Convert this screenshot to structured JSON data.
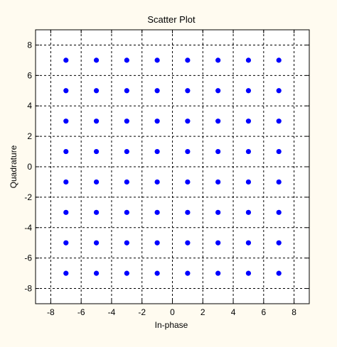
{
  "chart_data": {
    "type": "scatter",
    "title": "Scatter Plot",
    "xlabel": "In-phase",
    "ylabel": "Quadrature",
    "xlim": [
      -9,
      9
    ],
    "ylim": [
      -9,
      9
    ],
    "xticks": [
      -8,
      -6,
      -4,
      -2,
      0,
      2,
      4,
      6,
      8
    ],
    "yticks": [
      -8,
      -6,
      -4,
      -2,
      0,
      2,
      4,
      6,
      8
    ],
    "grid": true,
    "grid_style": "dashed",
    "marker_color": "#0000ff",
    "axes_background": "#ffffff",
    "figure_background": "#fffbf0",
    "series": [
      {
        "points": [
          [
            -7,
            7
          ],
          [
            -5,
            7
          ],
          [
            -3,
            7
          ],
          [
            -1,
            7
          ],
          [
            1,
            7
          ],
          [
            3,
            7
          ],
          [
            5,
            7
          ],
          [
            7,
            7
          ],
          [
            -7,
            5
          ],
          [
            -5,
            5
          ],
          [
            -3,
            5
          ],
          [
            -1,
            5
          ],
          [
            1,
            5
          ],
          [
            3,
            5
          ],
          [
            5,
            5
          ],
          [
            7,
            5
          ],
          [
            -7,
            3
          ],
          [
            -5,
            3
          ],
          [
            -3,
            3
          ],
          [
            -1,
            3
          ],
          [
            1,
            3
          ],
          [
            3,
            3
          ],
          [
            5,
            3
          ],
          [
            7,
            3
          ],
          [
            -7,
            1
          ],
          [
            -5,
            1
          ],
          [
            -3,
            1
          ],
          [
            -1,
            1
          ],
          [
            1,
            1
          ],
          [
            3,
            1
          ],
          [
            5,
            1
          ],
          [
            7,
            1
          ],
          [
            -7,
            -1
          ],
          [
            -5,
            -1
          ],
          [
            -3,
            -1
          ],
          [
            -1,
            -1
          ],
          [
            1,
            -1
          ],
          [
            3,
            -1
          ],
          [
            5,
            -1
          ],
          [
            7,
            -1
          ],
          [
            -7,
            -3
          ],
          [
            -5,
            -3
          ],
          [
            -3,
            -3
          ],
          [
            -1,
            -3
          ],
          [
            1,
            -3
          ],
          [
            3,
            -3
          ],
          [
            5,
            -3
          ],
          [
            7,
            -3
          ],
          [
            -7,
            -5
          ],
          [
            -5,
            -5
          ],
          [
            -3,
            -5
          ],
          [
            -1,
            -5
          ],
          [
            1,
            -5
          ],
          [
            3,
            -5
          ],
          [
            5,
            -5
          ],
          [
            7,
            -5
          ],
          [
            -7,
            -7
          ],
          [
            -5,
            -7
          ],
          [
            -3,
            -7
          ],
          [
            -1,
            -7
          ],
          [
            1,
            -7
          ],
          [
            3,
            -7
          ],
          [
            5,
            -7
          ],
          [
            7,
            -7
          ]
        ]
      }
    ]
  }
}
